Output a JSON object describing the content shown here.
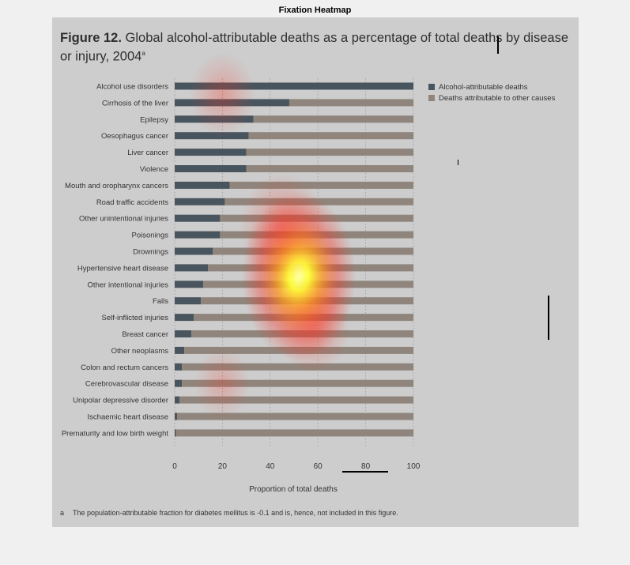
{
  "page_title": "Fixation Heatmap",
  "figure": {
    "label": "Figure 12.",
    "caption": "Global alcohol-attributable deaths as a percentage of total deaths by disease or injury, 2004",
    "caption_superscript": "a",
    "footnote_mark": "a",
    "footnote": "The population-attributable fraction for diabetes mellitus is -0.1 and is, hence, not included in this figure."
  },
  "colors": {
    "alcohol": "#49555e",
    "other": "#8f857c",
    "panel": "#cdcdcd",
    "heat_hot": "#ffff66",
    "heat_warm": "#ff2a1a"
  },
  "chart_data": {
    "type": "bar",
    "orientation": "horizontal",
    "stacked": true,
    "xlabel": "Proportion of total deaths",
    "xlim": [
      0,
      100
    ],
    "xticks": [
      0,
      20,
      40,
      60,
      80,
      100
    ],
    "grid": "vertical dotted",
    "legend": "top-right",
    "categories": [
      "Alcohol use disorders",
      "Cirrhosis of the liver",
      "Epilepsy",
      "Oesophagus cancer",
      "Liver cancer",
      "Violence",
      "Mouth and oropharynx cancers",
      "Road traffic accidents",
      "Other unintentional injuries",
      "Poisonings",
      "Drownings",
      "Hypertensive heart disease",
      "Other intentional injuries",
      "Falls",
      "Self-inflicted injuries",
      "Breast cancer",
      "Other neoplasms",
      "Colon and rectum cancers",
      "Cerebrovascular disease",
      "Unipolar depressive disorder",
      "Ischaemic heart disease",
      "Prematurity and low birth weight"
    ],
    "series": [
      {
        "name": "Alcohol-attributable deaths",
        "values": [
          100,
          48,
          33,
          31,
          30,
          30,
          23,
          21,
          19,
          19,
          16,
          14,
          12,
          11,
          8,
          7,
          4,
          3,
          3,
          2,
          1,
          0.5
        ]
      },
      {
        "name": "Deaths attributable to other causes",
        "values": [
          0,
          52,
          67,
          69,
          70,
          70,
          77,
          79,
          81,
          81,
          84,
          86,
          88,
          89,
          92,
          93,
          96,
          97,
          97,
          98,
          99,
          99.5
        ]
      }
    ]
  },
  "heatmap": {
    "fixations": [
      {
        "x": 52,
        "y": 11.5,
        "intensity": 1.0,
        "spread": 1.0
      },
      {
        "x": 45,
        "y": 8.5,
        "intensity": 0.55,
        "spread": 0.9
      },
      {
        "x": 58,
        "y": 14.5,
        "intensity": 0.5,
        "spread": 0.8
      },
      {
        "x": 20,
        "y": 0.5,
        "intensity": 0.35,
        "spread": 0.7
      },
      {
        "x": 20,
        "y": 18,
        "intensity": 0.25,
        "spread": 0.6
      }
    ]
  }
}
